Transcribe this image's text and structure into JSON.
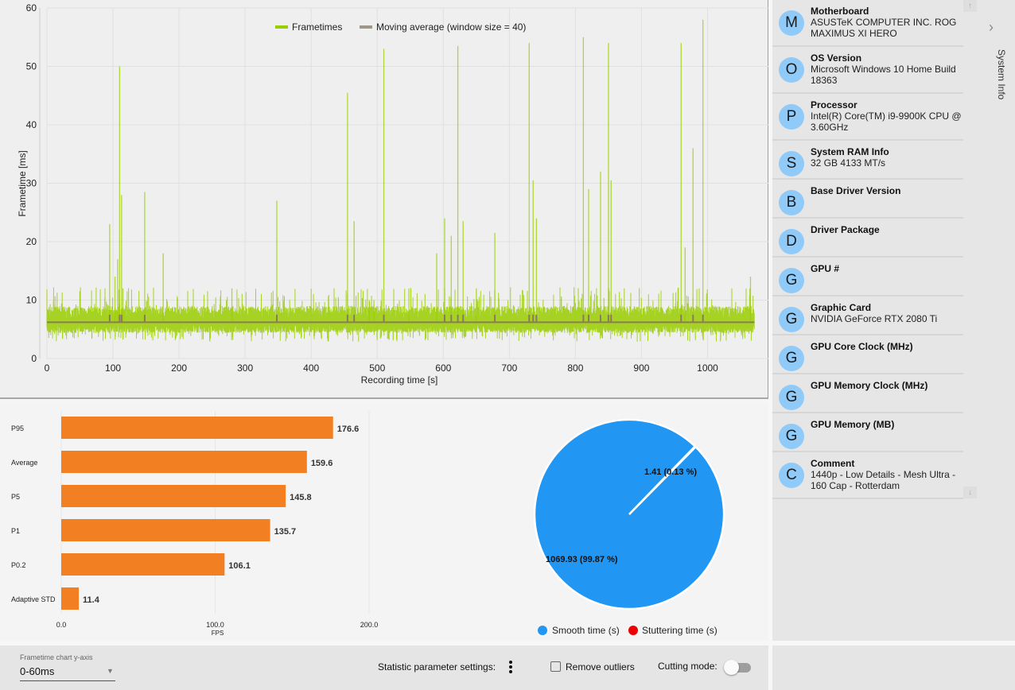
{
  "frametime_chart": {
    "legend": [
      {
        "label": "Frametimes",
        "color": "#9acd00"
      },
      {
        "label": "Moving average (window size = 40)",
        "color": "#a0958a"
      }
    ]
  },
  "stats_bar": {},
  "pie": {},
  "chart_data": [
    {
      "type": "line",
      "title": "",
      "xlabel": "Recording time [s]",
      "ylabel": "Frametime [ms]",
      "xlim": [
        0,
        1071
      ],
      "ylim": [
        0,
        60
      ],
      "x_ticks": [
        0,
        100,
        200,
        300,
        400,
        500,
        600,
        700,
        800,
        900,
        1000
      ],
      "y_ticks": [
        0,
        10,
        20,
        30,
        40,
        50,
        60
      ],
      "grid": true,
      "legend_position": "top-center",
      "series": [
        {
          "name": "Frametimes",
          "color": "#9acd00",
          "baseline_ms": 6.2,
          "typical_range_ms": [
            3.5,
            9
          ],
          "spikes": [
            [
              95,
              23
            ],
            [
              103,
              14
            ],
            [
              107,
              17
            ],
            [
              110,
              50
            ],
            [
              113,
              28
            ],
            [
              115,
              12
            ],
            [
              148,
              28.5
            ],
            [
              176,
              18
            ],
            [
              280,
              12
            ],
            [
              348,
              27
            ],
            [
              455,
              45.5
            ],
            [
              465,
              23.5
            ],
            [
              488,
              10
            ],
            [
              495,
              10
            ],
            [
              510,
              53
            ],
            [
              548,
              12
            ],
            [
              590,
              18
            ],
            [
              602,
              24
            ],
            [
              612,
              21
            ],
            [
              622,
              53.5
            ],
            [
              630,
              23.5
            ],
            [
              650,
              12
            ],
            [
              678,
              21.5
            ],
            [
              730,
              54
            ],
            [
              736,
              30.5
            ],
            [
              741,
              24
            ],
            [
              812,
              55
            ],
            [
              820,
              29
            ],
            [
              838,
              32
            ],
            [
              850,
              54
            ],
            [
              854,
              30.5
            ],
            [
              960,
              54
            ],
            [
              966,
              19
            ],
            [
              978,
              36
            ],
            [
              993,
              58
            ],
            [
              1065,
              14
            ]
          ]
        },
        {
          "name": "Moving average (window size = 40)",
          "color": "#8c7b5a",
          "baseline_ms": 6.2
        }
      ]
    },
    {
      "type": "bar",
      "orientation": "horizontal",
      "categories": [
        "P95",
        "Average",
        "P5",
        "P1",
        "P0.2",
        "Adaptive STD"
      ],
      "values": [
        176.6,
        159.6,
        145.8,
        135.7,
        106.1,
        11.4
      ],
      "value_labels": [
        "176.6",
        "159.6",
        "145.8",
        "135.7",
        "106.1",
        "11.4"
      ],
      "xlabel": "FPS",
      "xlim": [
        0,
        200
      ],
      "x_ticks": [
        "0.0",
        "100.0",
        "200.0"
      ],
      "color": "#f28022"
    },
    {
      "type": "pie",
      "slices": [
        {
          "label": "Smooth time (s)",
          "value": 1069.93,
          "percent": 99.87,
          "data_label": "1069.93 (99.87 %)",
          "color": "#2196f3"
        },
        {
          "label": "Stuttering time (s)",
          "value": 1.41,
          "percent": 0.13,
          "data_label": "1.41 (0.13 %)",
          "color": "#ee0000"
        }
      ],
      "legend_position": "bottom"
    }
  ],
  "sidebar": {
    "tab_label": "System Info",
    "items": [
      {
        "avatar": "M",
        "title": "Motherboard",
        "value": "ASUSTeK COMPUTER INC. ROG MAXIMUS XI HERO"
      },
      {
        "avatar": "O",
        "title": "OS Version",
        "value": "Microsoft Windows 10 Home Build 18363"
      },
      {
        "avatar": "P",
        "title": "Processor",
        "value": "Intel(R) Core(TM) i9-9900K CPU @ 3.60GHz"
      },
      {
        "avatar": "S",
        "title": "System RAM Info",
        "value": "32 GB 4133 MT/s"
      },
      {
        "avatar": "B",
        "title": "Base Driver Version",
        "value": ""
      },
      {
        "avatar": "D",
        "title": "Driver Package",
        "value": ""
      },
      {
        "avatar": "G",
        "title": "GPU #",
        "value": ""
      },
      {
        "avatar": "G",
        "title": "Graphic Card",
        "value": "NVIDIA GeForce RTX 2080 Ti"
      },
      {
        "avatar": "G",
        "title": "GPU Core Clock (MHz)",
        "value": ""
      },
      {
        "avatar": "G",
        "title": "GPU Memory Clock (MHz)",
        "value": ""
      },
      {
        "avatar": "G",
        "title": "GPU Memory (MB)",
        "value": ""
      },
      {
        "avatar": "C",
        "title": "Comment",
        "value": "1440p - Low Details - Mesh Ultra - 160 Cap - Rotterdam"
      }
    ]
  },
  "toolbar": {
    "yaxis_label": "Frametime chart y-axis",
    "yaxis_value": "0-60ms",
    "stat_settings_label": "Statistic parameter settings:",
    "remove_outliers_label": "Remove outliers",
    "remove_outliers_checked": false,
    "cutting_mode_label": "Cutting mode:",
    "cutting_mode_on": false
  }
}
